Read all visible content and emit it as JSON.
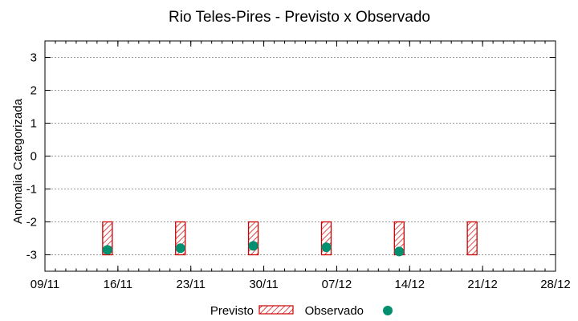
{
  "chart_data": {
    "type": "bar",
    "title": "Rio Teles-Pires - Previsto x Observado",
    "xlabel": "",
    "ylabel": "Anomalia Categorizada",
    "ylim": [
      -3.5,
      3.5
    ],
    "yticks": [
      3,
      2,
      1,
      0,
      -1,
      -2,
      -3
    ],
    "ytick_labels": [
      "3",
      "2",
      "1",
      "0",
      "-1",
      "-2",
      "-3"
    ],
    "x_start": "2024-11-09",
    "x_end": "2024-12-28",
    "x_ticks": [
      "2024-11-09",
      "2024-11-16",
      "2024-11-23",
      "2024-11-30",
      "2024-12-07",
      "2024-12-14",
      "2024-12-21",
      "2024-12-28"
    ],
    "x_tick_labels": [
      "09/11",
      "16/11",
      "23/11",
      "30/11",
      "07/12",
      "14/12",
      "21/12",
      "28/12"
    ],
    "grid": true,
    "legend_position": "bottom",
    "series": [
      {
        "name": "Previsto",
        "kind": "range-bar",
        "color": "#cc0000",
        "x": [
          "2024-11-15",
          "2024-11-22",
          "2024-11-29",
          "2024-12-06",
          "2024-12-13",
          "2024-12-20"
        ],
        "low": [
          -3,
          -3,
          -3,
          -3,
          -3,
          -3
        ],
        "high": [
          -2,
          -2,
          -2,
          -2,
          -2,
          -2
        ]
      },
      {
        "name": "Observado",
        "kind": "point",
        "color": "#009070",
        "x": [
          "2024-11-15",
          "2024-11-22",
          "2024-11-29",
          "2024-12-06",
          "2024-12-13"
        ],
        "y": [
          -2.85,
          -2.8,
          -2.73,
          -2.77,
          -2.9
        ]
      }
    ]
  }
}
